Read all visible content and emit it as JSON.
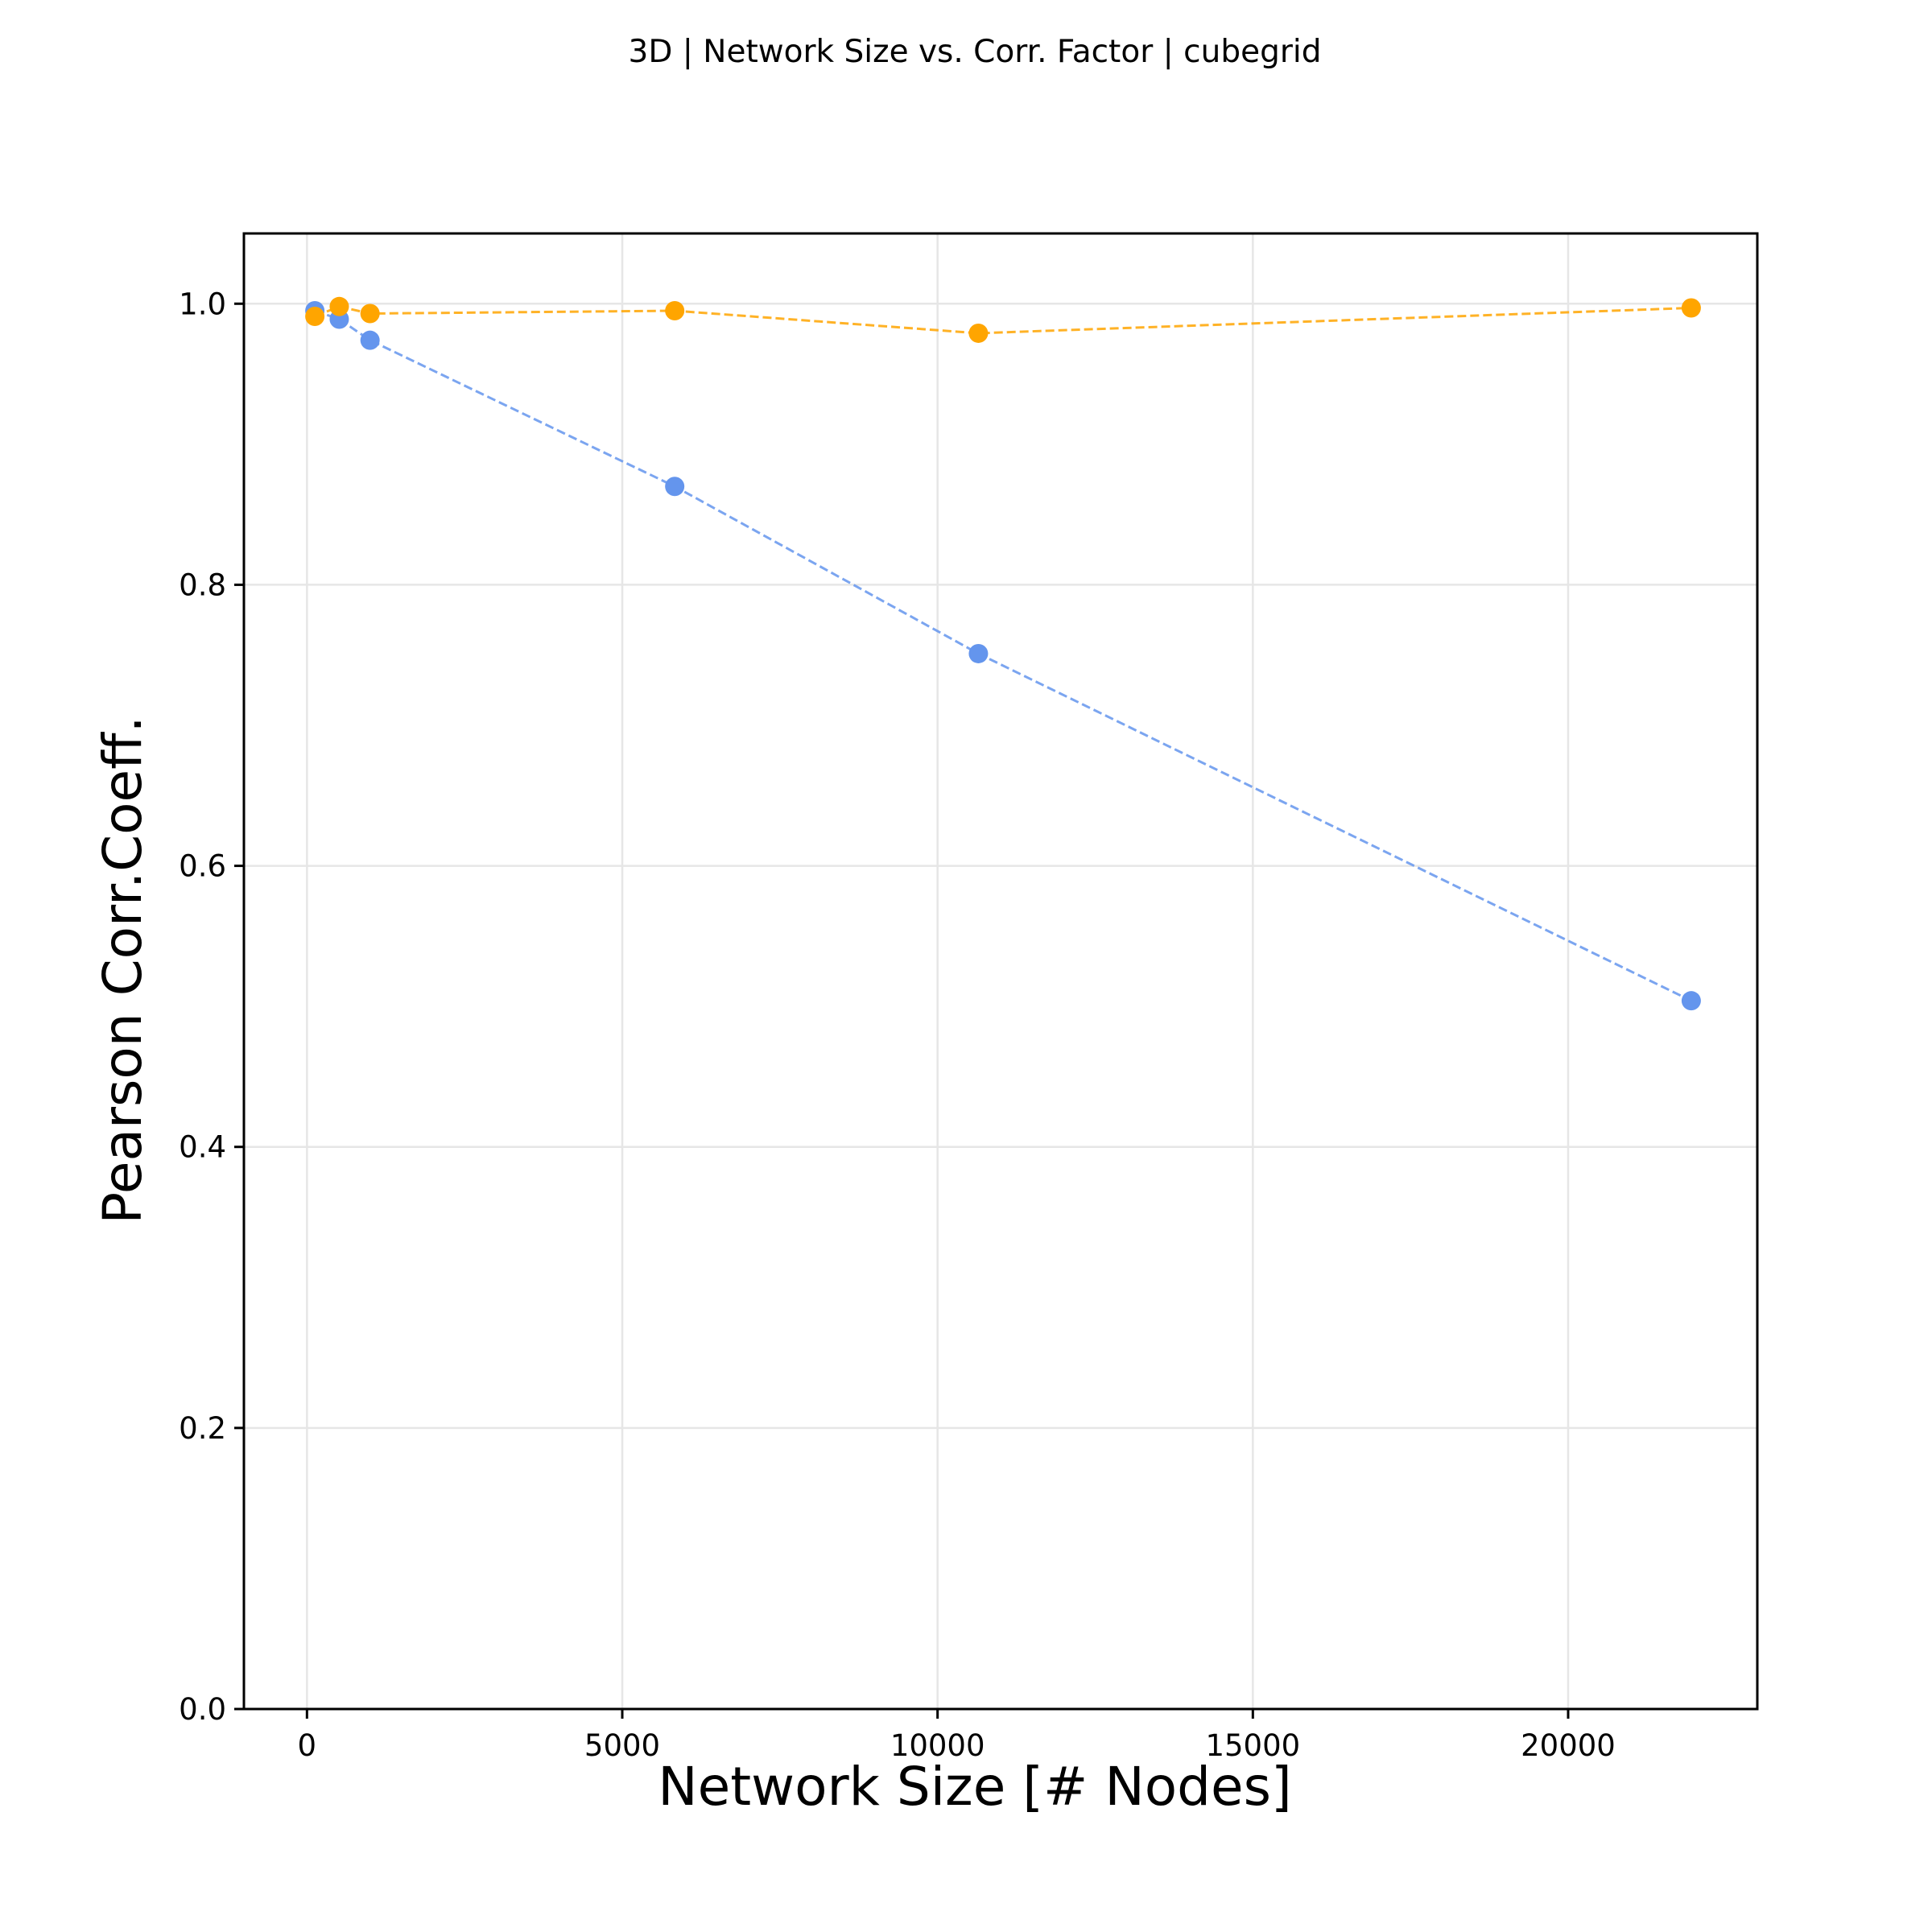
{
  "chart_data": {
    "type": "line",
    "title": "3D | Network Size vs. Corr. Factor | cubegrid",
    "xlabel": "Network Size [# Nodes]",
    "ylabel": "Pearson Corr.Coeff.",
    "xlim": [
      -1000,
      23000
    ],
    "ylim": [
      0.0,
      1.05
    ],
    "xticks": [
      0,
      5000,
      10000,
      15000,
      20000
    ],
    "xtick_labels": [
      "0",
      "5000",
      "10000",
      "15000",
      "20000"
    ],
    "yticks": [
      0.0,
      0.2,
      0.4,
      0.6,
      0.8,
      1.0
    ],
    "ytick_labels": [
      "0.0",
      "0.2",
      "0.4",
      "0.6",
      "0.8",
      "1.0"
    ],
    "grid": true,
    "line_style": "dashed",
    "series": [
      {
        "color": "#6495ED",
        "x": [
          125,
          512,
          1000,
          5832,
          10648,
          21952
        ],
        "y": [
          0.995,
          0.989,
          0.974,
          0.87,
          0.751,
          0.504
        ]
      },
      {
        "color": "#FFA500",
        "x": [
          125,
          512,
          1000,
          5832,
          10648,
          21952
        ],
        "y": [
          0.991,
          0.998,
          0.993,
          0.995,
          0.979,
          0.997
        ]
      }
    ]
  }
}
